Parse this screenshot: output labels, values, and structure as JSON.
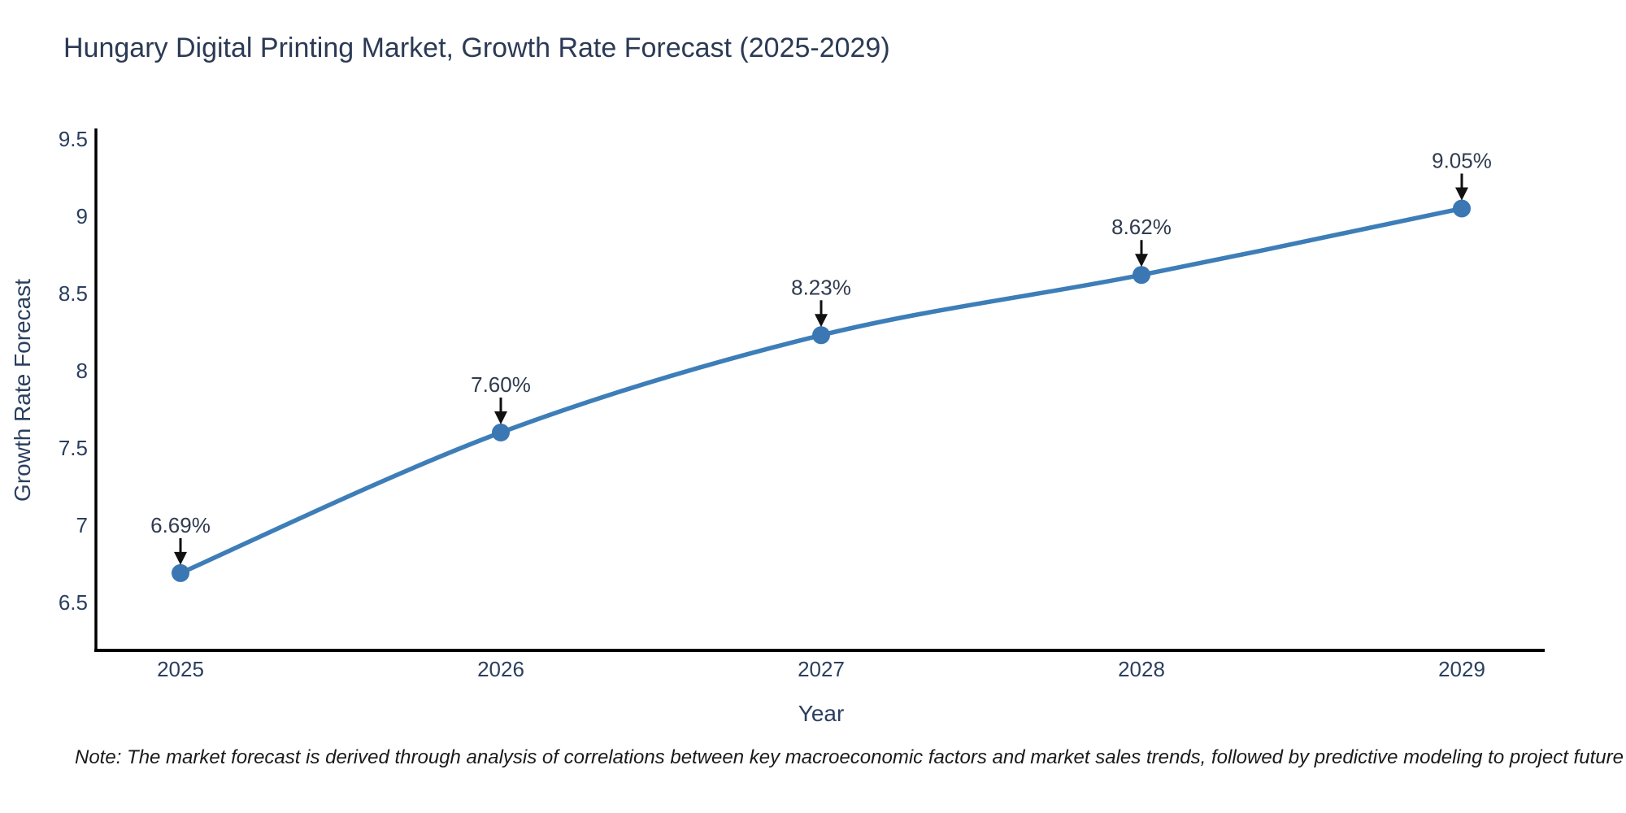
{
  "chart_data": {
    "type": "line",
    "title": "Hungary Digital Printing Market, Growth Rate Forecast (2025-2029)",
    "xlabel": "Year",
    "ylabel": "Growth Rate Forecast",
    "x": [
      2025,
      2026,
      2027,
      2028,
      2029
    ],
    "xtick_labels": [
      "2025",
      "2026",
      "2027",
      "2028",
      "2029"
    ],
    "series": [
      {
        "name": "Growth Rate Forecast",
        "values": [
          6.69,
          7.6,
          8.23,
          8.62,
          9.05
        ]
      }
    ],
    "point_labels": [
      "6.69%",
      "7.60%",
      "8.23%",
      "8.62%",
      "9.05%"
    ],
    "yticks": [
      6.5,
      7,
      7.5,
      8,
      8.5,
      9,
      9.5
    ],
    "ytick_labels": [
      "6.5",
      "7",
      "7.5",
      "8",
      "8.5",
      "9",
      "9.5"
    ],
    "ylim": [
      6.2,
      9.57
    ],
    "xlim": [
      2024.74,
      2029.26
    ],
    "grid": false,
    "legend": false,
    "note": "Note: The market forecast is derived through analysis of correlations between key macroeconomic factors and market sales trends, followed by predictive modeling to project future sales",
    "colors": {
      "line": "#3d7eb8",
      "marker": "#3a77b3",
      "axis": "#000000",
      "tick_text": "#2a3f5f",
      "annotation_text": "#2f3b4e",
      "arrow": "#111111",
      "background": "#ffffff"
    }
  }
}
